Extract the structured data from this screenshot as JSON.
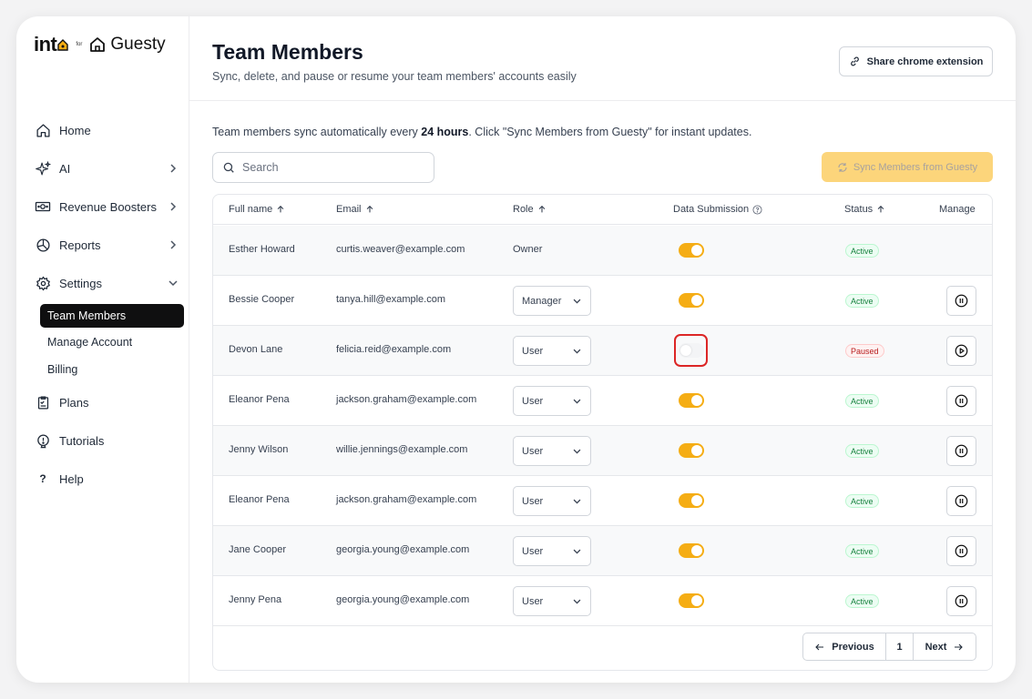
{
  "brand": {
    "into": "int",
    "for": "for",
    "partner": "Guesty"
  },
  "sidebar": {
    "items": [
      {
        "label": "Home",
        "icon": "home-icon"
      },
      {
        "label": "AI",
        "icon": "sparkles-icon"
      },
      {
        "label": "Revenue Boosters",
        "icon": "money-icon"
      },
      {
        "label": "Reports",
        "icon": "pie-chart-icon"
      },
      {
        "label": "Settings",
        "icon": "gear-icon"
      }
    ],
    "settings_sub": [
      "Team Members",
      "Manage Account",
      "Billing"
    ],
    "bottom_items": [
      {
        "label": "Plans",
        "icon": "clipboard-icon"
      },
      {
        "label": "Tutorials",
        "icon": "lightbulb-icon"
      },
      {
        "label": "Help",
        "icon": "question-icon"
      }
    ]
  },
  "header": {
    "title": "Team Members",
    "subtitle": "Sync, delete, and pause or resume your team members' accounts easily",
    "share_label": "Share chrome extension"
  },
  "info": {
    "prefix": "Team members sync automatically every ",
    "bold": "24 hours",
    "suffix": ". Click \"Sync Members from Guesty\" for instant updates."
  },
  "search": {
    "placeholder": "Search"
  },
  "sync_label": "Sync Members from Guesty",
  "table": {
    "headers": {
      "name": "Full name",
      "email": "Email",
      "role": "Role",
      "data": "Data Submission",
      "status": "Status",
      "manage": "Manage"
    },
    "rows": [
      {
        "name": "Esther Howard",
        "email": "curtis.weaver@example.com",
        "role": "Owner",
        "data_on": true,
        "status": "Active"
      },
      {
        "name": "Bessie Cooper",
        "email": "tanya.hill@example.com",
        "role": "Manager",
        "data_on": true,
        "status": "Active"
      },
      {
        "name": "Devon Lane",
        "email": "felicia.reid@example.com",
        "role": "User",
        "data_on": false,
        "status": "Paused"
      },
      {
        "name": "Eleanor Pena",
        "email": "jackson.graham@example.com",
        "role": "User",
        "data_on": true,
        "status": "Active"
      },
      {
        "name": "Jenny Wilson",
        "email": "willie.jennings@example.com",
        "role": "User",
        "data_on": true,
        "status": "Active"
      },
      {
        "name": "Eleanor Pena",
        "email": "jackson.graham@example.com",
        "role": "User",
        "data_on": true,
        "status": "Active"
      },
      {
        "name": "Jane Cooper",
        "email": "georgia.young@example.com",
        "role": "User",
        "data_on": true,
        "status": "Active"
      },
      {
        "name": "Jenny Pena",
        "email": "georgia.young@example.com",
        "role": "User",
        "data_on": true,
        "status": "Active"
      }
    ]
  },
  "pagination": {
    "prev": "Previous",
    "page": "1",
    "next": "Next"
  },
  "colors": {
    "accent": "#f5ad14",
    "sync_bg": "#fcd57b",
    "active": "#15803d",
    "paused": "#b91c1c",
    "highlight": "#dc2626"
  }
}
